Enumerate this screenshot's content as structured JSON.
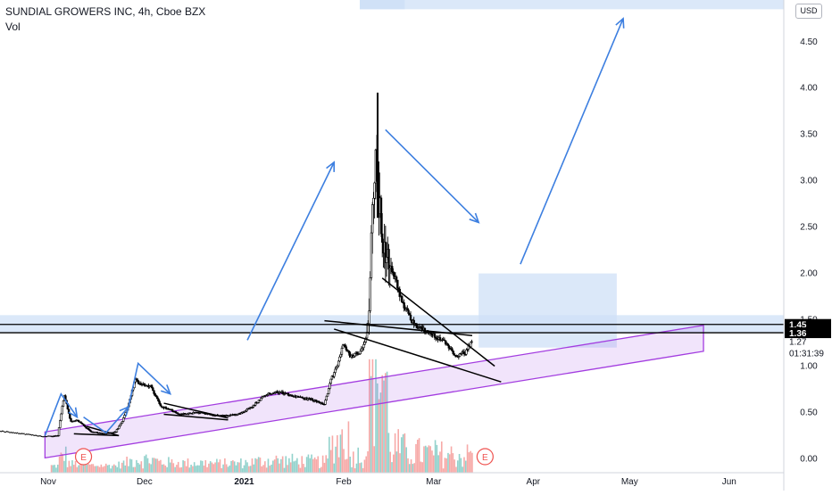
{
  "header": {
    "title": "SUNDIAL GROWERS INC, 4h, Cboe BZX",
    "volume_label": "Vol",
    "currency": "USD"
  },
  "colors": {
    "up": "#26a69a",
    "down": "#ef5350",
    "arrow": "#3d7fe0",
    "zone_fill": "#cfe0f7",
    "channel": "#a33de0",
    "line": "#000000",
    "axis_text": "#131722"
  },
  "chart_data": {
    "type": "candlestick",
    "title": "SUNDIAL GROWERS INC, 4h, Cboe BZX",
    "x_dates": [
      "Oct 17",
      "Nov 1",
      "Dec 1",
      "Jan 1",
      "Feb 1",
      "Mar 1",
      "Apr 1",
      "May 1",
      "Jun 1",
      "Jun 18"
    ],
    "xlim": [
      "Oct 17",
      "Jun 18"
    ],
    "ylim": [
      -0.15,
      4.95
    ],
    "y_ticks": [
      0.0,
      0.5,
      1.0,
      1.5,
      2.0,
      2.5,
      3.0,
      3.5,
      4.0,
      4.5
    ],
    "x_ticks": [
      {
        "label": "Nov",
        "date": "Nov 1"
      },
      {
        "label": "Dec",
        "date": "Dec 1"
      },
      {
        "label": "2021",
        "date": "Jan 1"
      },
      {
        "label": "Feb",
        "date": "Feb 1"
      },
      {
        "label": "Mar",
        "date": "Mar 1"
      },
      {
        "label": "Apr",
        "date": "Apr 1"
      },
      {
        "label": "May",
        "date": "May 1"
      },
      {
        "label": "Jun",
        "date": "Jun 1"
      }
    ],
    "price_path": [
      [
        "Oct 17",
        0.3
      ],
      [
        "Oct 24",
        0.27
      ],
      [
        "Oct 31",
        0.24
      ],
      [
        "Nov 4",
        0.25
      ],
      [
        "Nov 6",
        0.7
      ],
      [
        "Nov 8",
        0.4
      ],
      [
        "Nov 10",
        0.42
      ],
      [
        "Nov 14",
        0.3
      ],
      [
        "Nov 18",
        0.27
      ],
      [
        "Nov 22",
        0.29
      ],
      [
        "Nov 24",
        0.4
      ],
      [
        "Nov 26",
        0.58
      ],
      [
        "Nov 28",
        0.85
      ],
      [
        "Nov 30",
        0.8
      ],
      [
        "Dec 3",
        0.78
      ],
      [
        "Dec 6",
        0.57
      ],
      [
        "Dec 12",
        0.48
      ],
      [
        "Dec 18",
        0.5
      ],
      [
        "Dec 24",
        0.46
      ],
      [
        "Dec 30",
        0.48
      ],
      [
        "Jan 3",
        0.55
      ],
      [
        "Jan 8",
        0.7
      ],
      [
        "Jan 12",
        0.72
      ],
      [
        "Jan 18",
        0.66
      ],
      [
        "Jan 22",
        0.64
      ],
      [
        "Jan 26",
        0.58
      ],
      [
        "Jan 28",
        0.85
      ],
      [
        "Jan 30",
        1.0
      ],
      [
        "Feb 1",
        1.25
      ],
      [
        "Feb 3",
        1.1
      ],
      [
        "Feb 6",
        1.15
      ],
      [
        "Feb 8",
        1.3
      ],
      [
        "Feb 9",
        1.7
      ],
      [
        "Feb 10",
        2.75
      ],
      [
        "Feb 11",
        3.2
      ],
      [
        "Feb 12",
        2.8
      ],
      [
        "Feb 13",
        2.4
      ],
      [
        "Feb 15",
        2.1
      ],
      [
        "Feb 17",
        1.95
      ],
      [
        "Feb 19",
        1.7
      ],
      [
        "Feb 22",
        1.5
      ],
      [
        "Feb 25",
        1.4
      ],
      [
        "Feb 28",
        1.35
      ],
      [
        "Mar 3",
        1.3
      ],
      [
        "Mar 6",
        1.2
      ],
      [
        "Mar 8",
        1.1
      ],
      [
        "Mar 11",
        1.15
      ],
      [
        "Mar 13",
        1.27
      ]
    ],
    "price_highlights": [
      {
        "label": "1.45",
        "value": 1.45,
        "style": "dark"
      },
      {
        "label": "1.36",
        "value": 1.36,
        "style": "dark"
      },
      {
        "label": "1.27",
        "value": 1.27,
        "style": "plain"
      }
    ],
    "countdown": "01:31:39",
    "earnings_markers": [
      {
        "label": "E",
        "date": "Nov 12"
      },
      {
        "label": "E",
        "date": "Mar 17"
      }
    ],
    "horizontal_lines": [
      1.45,
      1.36
    ],
    "zones": [
      {
        "from": "Oct 17",
        "to": "Jun 18",
        "y0": 1.36,
        "y1": 1.55
      },
      {
        "from": "Mar 15",
        "to": "Apr 27",
        "y0": 1.2,
        "y1": 2.0
      },
      {
        "from": "Feb 6",
        "to": "Feb 20",
        "y0": 4.85,
        "y1": 5.1
      },
      {
        "from": "Feb 6",
        "to": "Jun 18",
        "y0": 4.85,
        "y1": 5.1
      }
    ],
    "channel": {
      "start": [
        "Oct 31",
        0.15
      ],
      "end": [
        "May 24",
        1.3
      ],
      "width": 0.28
    },
    "trendlines": [
      [
        [
          "Feb 13",
          1.95
        ],
        [
          "Mar 20",
          1.0
        ]
      ],
      [
        [
          "Jan 29",
          1.4
        ],
        [
          "Mar 22",
          0.83
        ]
      ],
      [
        [
          "Jan 26",
          1.49
        ],
        [
          "Mar 13",
          1.33
        ]
      ],
      [
        [
          "Nov 9",
          0.27
        ],
        [
          "Nov 23",
          0.25
        ]
      ],
      [
        [
          "Nov 13",
          0.35
        ],
        [
          "Nov 23",
          0.25
        ]
      ],
      [
        [
          "Dec 7",
          0.48
        ],
        [
          "Dec 27",
          0.42
        ]
      ],
      [
        [
          "Dec 7",
          0.6
        ],
        [
          "Dec 27",
          0.44
        ]
      ]
    ],
    "arrows": [
      [
        [
          "Oct 31",
          0.25
        ],
        [
          "Nov 5",
          0.7
        ],
        [
          "Nov 10",
          0.45
        ]
      ],
      [
        [
          "Nov 12",
          0.45
        ],
        [
          "Nov 19",
          0.28
        ],
        [
          "Nov 26",
          0.56
        ]
      ],
      [
        [
          "Nov 26",
          0.56
        ],
        [
          "Nov 29",
          1.03
        ],
        [
          "Dec 9",
          0.7
        ]
      ],
      [
        [
          "Jan 2",
          1.28
        ],
        [
          "Jan 29",
          3.2
        ]
      ],
      [
        [
          "Feb 14",
          3.55
        ],
        [
          "Mar 15",
          2.55
        ]
      ],
      [
        [
          "Mar 28",
          2.1
        ],
        [
          "Apr 29",
          4.75
        ]
      ]
    ],
    "volume": {
      "max_bar_height_fraction": 0.24
    }
  }
}
